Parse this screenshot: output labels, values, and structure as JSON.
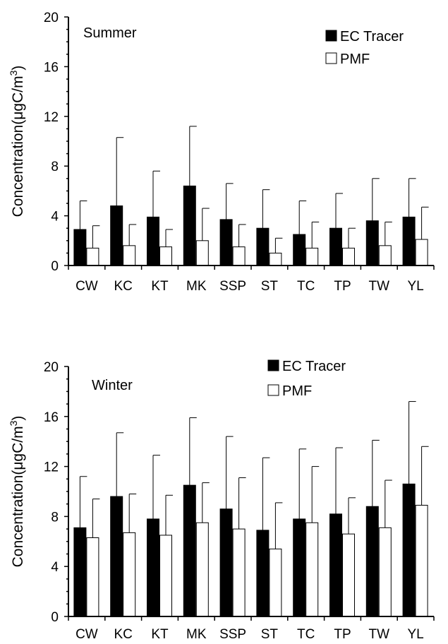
{
  "chart_data": [
    {
      "type": "bar",
      "title": "Summer",
      "ylabel": "Concentration(μgC/m",
      "ylabel_sup": "3",
      "ylabel_end": ")",
      "ylim": [
        0,
        20
      ],
      "yticks": [
        "0",
        "4",
        "8",
        "12",
        "16",
        "20"
      ],
      "legend_position": "top-right",
      "categories": [
        "CW",
        "KC",
        "KT",
        "MK",
        "SSP",
        "ST",
        "TC",
        "TP",
        "TW",
        "YL"
      ],
      "series": [
        {
          "name": "EC Tracer",
          "color": "#000000",
          "values": [
            2.9,
            4.8,
            3.9,
            6.4,
            3.7,
            3.0,
            2.5,
            3.0,
            3.6,
            3.9
          ],
          "errors": [
            2.3,
            5.5,
            3.7,
            4.8,
            2.9,
            3.1,
            2.7,
            2.8,
            3.4,
            3.1
          ]
        },
        {
          "name": "PMF",
          "color": "#ffffff",
          "values": [
            1.4,
            1.6,
            1.5,
            2.0,
            1.5,
            1.0,
            1.4,
            1.4,
            1.6,
            2.1
          ],
          "errors": [
            1.8,
            1.7,
            1.4,
            2.6,
            1.8,
            1.2,
            2.1,
            1.6,
            1.9,
            2.6
          ]
        }
      ]
    },
    {
      "type": "bar",
      "title": "Winter",
      "ylabel": "Concentration(μgC/m",
      "ylabel_sup": "3",
      "ylabel_end": ")",
      "ylim": [
        0,
        20
      ],
      "yticks": [
        "0",
        "4",
        "8",
        "12",
        "16",
        "20"
      ],
      "legend_position": "top-right",
      "categories": [
        "CW",
        "KC",
        "KT",
        "MK",
        "SSP",
        "ST",
        "TC",
        "TP",
        "TW",
        "YL"
      ],
      "series": [
        {
          "name": "EC Tracer",
          "color": "#000000",
          "values": [
            7.1,
            9.6,
            7.8,
            10.5,
            8.6,
            6.9,
            7.8,
            8.2,
            8.8,
            10.6
          ],
          "errors": [
            4.1,
            5.1,
            5.1,
            5.4,
            5.8,
            5.8,
            5.6,
            5.3,
            5.3,
            6.6
          ]
        },
        {
          "name": "PMF",
          "color": "#ffffff",
          "values": [
            6.3,
            6.7,
            6.5,
            7.5,
            7.0,
            5.4,
            7.5,
            6.6,
            7.1,
            8.9
          ],
          "errors": [
            3.1,
            3.1,
            3.2,
            3.2,
            4.1,
            3.7,
            4.5,
            2.9,
            3.8,
            4.7
          ]
        }
      ]
    }
  ]
}
